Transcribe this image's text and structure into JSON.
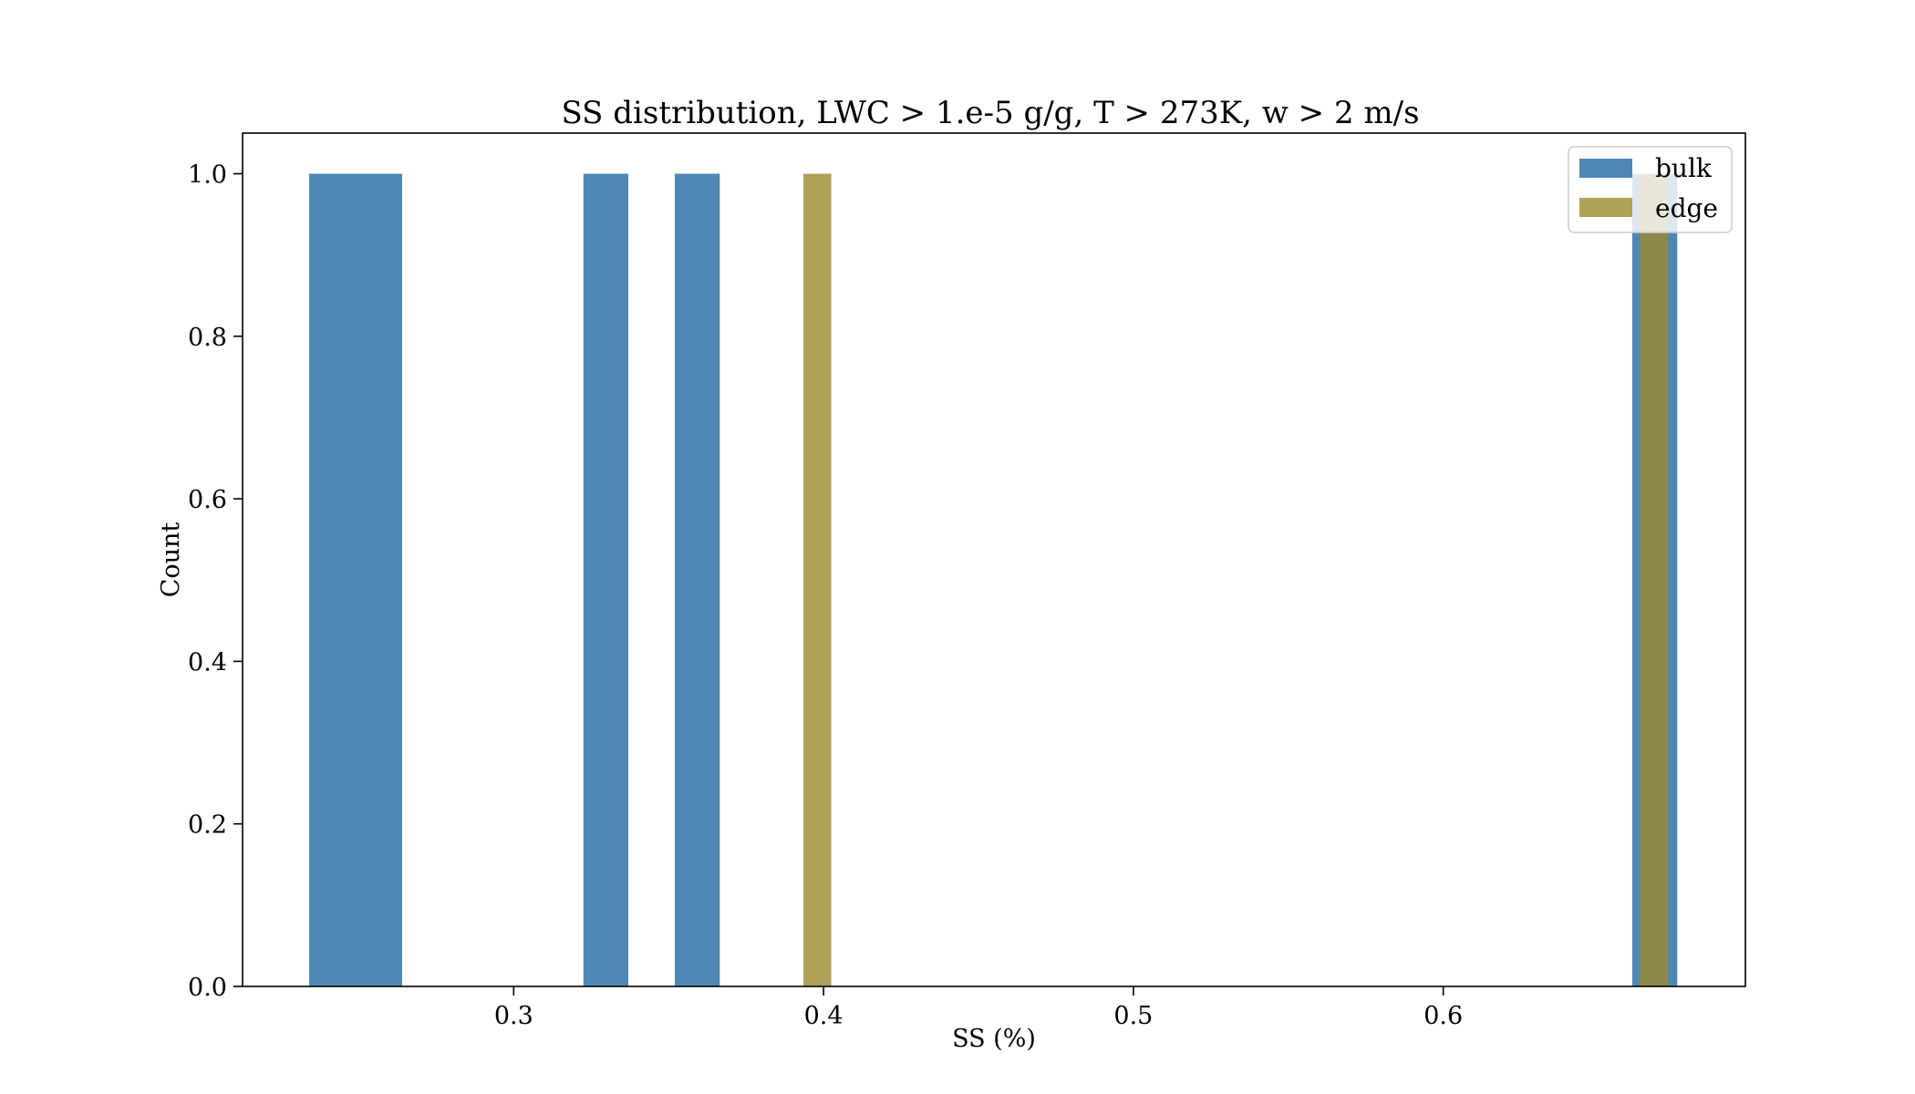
{
  "chart_data": {
    "type": "bar",
    "title": "SS distribution, LWC > 1.e-5 g/g, T > 273K, w > 2 m/s",
    "xlabel": "SS (%)",
    "ylabel": "Count",
    "xlim": [
      0.2125,
      0.6975
    ],
    "ylim": [
      0,
      1.05
    ],
    "xticks": [
      0.3,
      0.4,
      0.5,
      0.6
    ],
    "xtick_labels": [
      "0.3",
      "0.4",
      "0.5",
      "0.6"
    ],
    "yticks": [
      0.0,
      0.2,
      0.4,
      0.6,
      0.8,
      1.0
    ],
    "ytick_labels": [
      "0.0",
      "0.2",
      "0.4",
      "0.6",
      "0.8",
      "1.0"
    ],
    "grid": false,
    "legend_position": "top-right",
    "series": [
      {
        "name": "bulk",
        "color": "#4f87b4",
        "opacity": 1.0,
        "bars": [
          {
            "x0": 0.234,
            "x1": 0.264,
            "count": 1
          },
          {
            "x0": 0.3225,
            "x1": 0.337,
            "count": 1
          },
          {
            "x0": 0.352,
            "x1": 0.3665,
            "count": 1
          },
          {
            "x0": 0.661,
            "x1": 0.6755,
            "count": 1
          }
        ]
      },
      {
        "name": "edge",
        "color": "#9b8a2e",
        "opacity": 0.8,
        "bars": [
          {
            "x0": 0.3935,
            "x1": 0.4025,
            "count": 1
          },
          {
            "x0": 0.6635,
            "x1": 0.6725,
            "count": 1
          }
        ]
      }
    ]
  }
}
